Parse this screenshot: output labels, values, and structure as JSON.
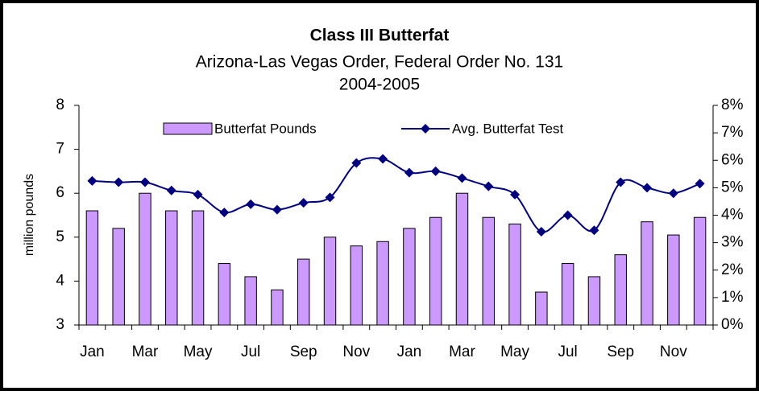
{
  "chart_data": {
    "type": "bar_line",
    "title": "Class III Butterfat",
    "subtitle": [
      "Arizona-Las Vegas Order, Federal Order No. 131",
      "2004-2005"
    ],
    "ylabel": "million pounds",
    "categories": [
      "Jan",
      null,
      "Mar",
      null,
      "May",
      null,
      "Jul",
      null,
      "Sep",
      null,
      "Nov",
      null,
      "Jan",
      null,
      "Mar",
      null,
      "May",
      null,
      "Jul",
      null,
      "Sep",
      null,
      "Nov",
      null
    ],
    "series": [
      {
        "name": "Butterfat Pounds",
        "type": "bar",
        "color": "#cc99ff",
        "values": [
          5.6,
          5.2,
          6.0,
          5.6,
          5.6,
          4.4,
          4.1,
          3.8,
          4.5,
          5.0,
          4.8,
          4.9,
          5.2,
          5.45,
          6.0,
          5.45,
          5.3,
          3.75,
          4.4,
          4.1,
          4.6,
          5.35,
          5.05,
          5.45
        ]
      },
      {
        "name": "Avg. Butterfat Test",
        "type": "line",
        "axis": "y2",
        "color": "#000080",
        "values": [
          5.25,
          5.2,
          5.2,
          4.9,
          4.75,
          4.1,
          4.4,
          4.2,
          4.45,
          4.65,
          5.9,
          6.05,
          5.55,
          5.6,
          5.35,
          5.05,
          4.75,
          3.4,
          4.0,
          3.45,
          5.2,
          5.0,
          4.8,
          5.15
        ]
      }
    ],
    "ylim": [
      3,
      8
    ],
    "yticks": [
      3,
      4,
      5,
      6,
      7,
      8
    ],
    "y2lim": [
      0,
      8
    ],
    "y2ticks": [
      {
        "value": 0,
        "label": "0%"
      },
      {
        "value": 1,
        "label": "1%"
      },
      {
        "value": 2,
        "label": "2%"
      },
      {
        "value": 3,
        "label": "3%"
      },
      {
        "value": 4,
        "label": "4%"
      },
      {
        "value": 5,
        "label": "5%"
      },
      {
        "value": 6,
        "label": "6%"
      },
      {
        "value": 7,
        "label": "7%"
      },
      {
        "value": 8,
        "label": "8%"
      }
    ],
    "grid": false,
    "legend": "top"
  }
}
